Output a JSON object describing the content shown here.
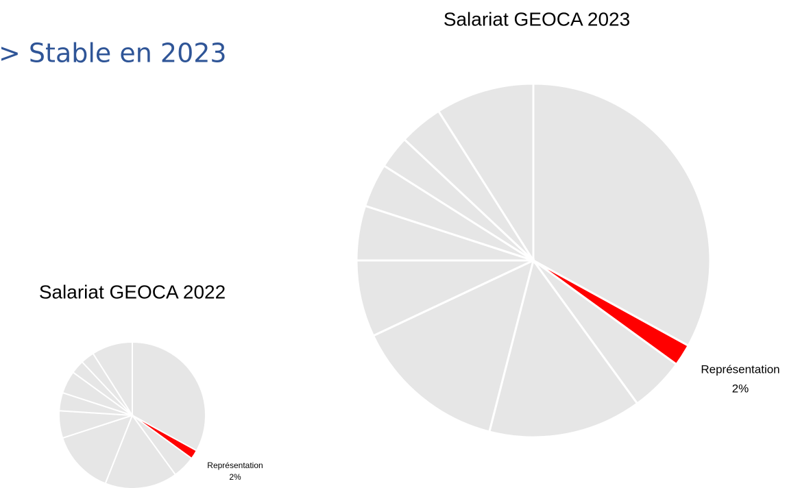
{
  "heading": "> Stable en 2023",
  "chart_data": [
    {
      "type": "pie",
      "title": "Salariat GEOCA 2023",
      "categories": [
        null,
        "Représentation",
        null,
        null,
        null,
        null,
        null,
        null,
        null,
        null,
        null
      ],
      "values": [
        33,
        2,
        5,
        14,
        14,
        7,
        5,
        4,
        3,
        4,
        9
      ],
      "value_labels": [
        null,
        "2%",
        null,
        null,
        null,
        null,
        null,
        null,
        null,
        null,
        null
      ],
      "colors": [
        "#e6e6e6",
        "#ff0000",
        "#e6e6e6",
        "#e6e6e6",
        "#e6e6e6",
        "#e6e6e6",
        "#e6e6e6",
        "#e6e6e6",
        "#e6e6e6",
        "#e6e6e6",
        "#e6e6e6"
      ]
    },
    {
      "type": "pie",
      "title": "Salariat GEOCA 2022",
      "categories": [
        null,
        "Représentation",
        null,
        null,
        null,
        null,
        null,
        null,
        null,
        null,
        null
      ],
      "values": [
        33,
        2,
        5,
        16,
        14,
        6,
        4,
        5,
        3,
        3,
        9
      ],
      "value_labels": [
        null,
        "2%",
        null,
        null,
        null,
        null,
        null,
        null,
        null,
        null,
        null
      ],
      "colors": [
        "#e6e6e6",
        "#ff0000",
        "#e6e6e6",
        "#e6e6e6",
        "#e6e6e6",
        "#e6e6e6",
        "#e6e6e6",
        "#e6e6e6",
        "#e6e6e6",
        "#e6e6e6",
        "#e6e6e6"
      ]
    }
  ]
}
